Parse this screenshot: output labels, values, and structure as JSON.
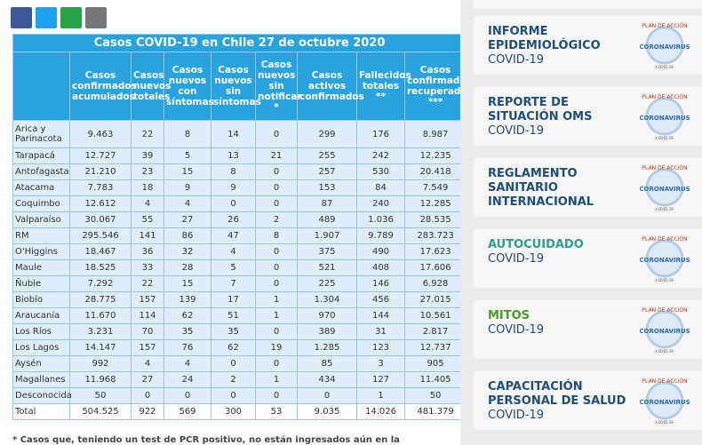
{
  "header": {
    "title": "Casos COVID-19 en Chile 27 de octubre 2020"
  },
  "table": {
    "headers": [
      "",
      "Casos confirmados acumulados",
      "Casos nuevos totales",
      "Casos nuevos con síntomas",
      "Casos nuevos sin síntomas",
      "Casos nuevos sin notificar *",
      "Casos activos confirmados",
      "Fallecidos totales **",
      "Casos confirmados recuperados ***"
    ],
    "rows": [
      [
        "Arica y Parinacota",
        "9.463",
        "22",
        "8",
        "14",
        "0",
        "299",
        "176",
        "8.987"
      ],
      [
        "Tarapacá",
        "12.727",
        "39",
        "5",
        "13",
        "21",
        "255",
        "242",
        "12.235"
      ],
      [
        "Antofagasta",
        "21.210",
        "23",
        "15",
        "8",
        "0",
        "257",
        "530",
        "20.418"
      ],
      [
        "Atacama",
        "7.783",
        "18",
        "9",
        "9",
        "0",
        "153",
        "84",
        "7.549"
      ],
      [
        "Coquimbo",
        "12.612",
        "4",
        "4",
        "0",
        "0",
        "87",
        "240",
        "12.285"
      ],
      [
        "Valparaíso",
        "30.067",
        "55",
        "27",
        "26",
        "2",
        "489",
        "1.036",
        "28.535"
      ],
      [
        "RM",
        "295.546",
        "141",
        "86",
        "47",
        "8",
        "1.907",
        "9.789",
        "283.723"
      ],
      [
        "O'Higgins",
        "18.467",
        "36",
        "32",
        "4",
        "0",
        "375",
        "490",
        "17.623"
      ],
      [
        "Maule",
        "18.525",
        "33",
        "28",
        "5",
        "0",
        "521",
        "408",
        "17.606"
      ],
      [
        "Ñuble",
        "7.292",
        "22",
        "15",
        "7",
        "0",
        "225",
        "146",
        "6.928"
      ],
      [
        "Biobío",
        "28.775",
        "157",
        "139",
        "17",
        "1",
        "1.304",
        "456",
        "27.015"
      ],
      [
        "Araucanía",
        "11.670",
        "114",
        "62",
        "51",
        "1",
        "970",
        "144",
        "10.561"
      ],
      [
        "Los Ríos",
        "3.231",
        "70",
        "35",
        "35",
        "0",
        "389",
        "31",
        "2.817"
      ],
      [
        "Los Lagos",
        "14.147",
        "157",
        "76",
        "62",
        "19",
        "1.285",
        "123",
        "12.737"
      ],
      [
        "Aysén",
        "992",
        "4",
        "4",
        "0",
        "0",
        "85",
        "3",
        "905"
      ],
      [
        "Magallanes",
        "11.968",
        "27",
        "24",
        "2",
        "1",
        "434",
        "127",
        "11.405"
      ],
      [
        "Desconocida",
        "50",
        "0",
        "0",
        "0",
        "0",
        "0",
        "1",
        "50"
      ],
      [
        "Total",
        "504.525",
        "922",
        "569",
        "300",
        "53",
        "9.035",
        "14.026",
        "481.379"
      ]
    ]
  },
  "footnote": "* Casos que, teniendo un test de PCR positivo, no están ingresados aún en la",
  "sidebar": {
    "logo_top": "PLAN DE ACCIÓN",
    "logo_bottom": "CORONAVIRUS",
    "logo_small": "COVID-19",
    "cards": [
      {
        "title": "INFORME EPIDEMIOLÓGICO",
        "subtitle": "COVID-19"
      },
      {
        "title": "REPORTE DE SITUACIÓN OMS",
        "subtitle": "COVID-19"
      },
      {
        "title": "REGLAMENTO SANITARIO INTERNACIONAL"
      },
      {
        "title": "AUTOCUIDADO",
        "subtitle": "COVID-19"
      },
      {
        "title": "MITOS",
        "subtitle": "COVID-19"
      },
      {
        "title": "CAPACITACIÓN PERSONAL DE SALUD",
        "subtitle": "COVID-19"
      }
    ]
  }
}
